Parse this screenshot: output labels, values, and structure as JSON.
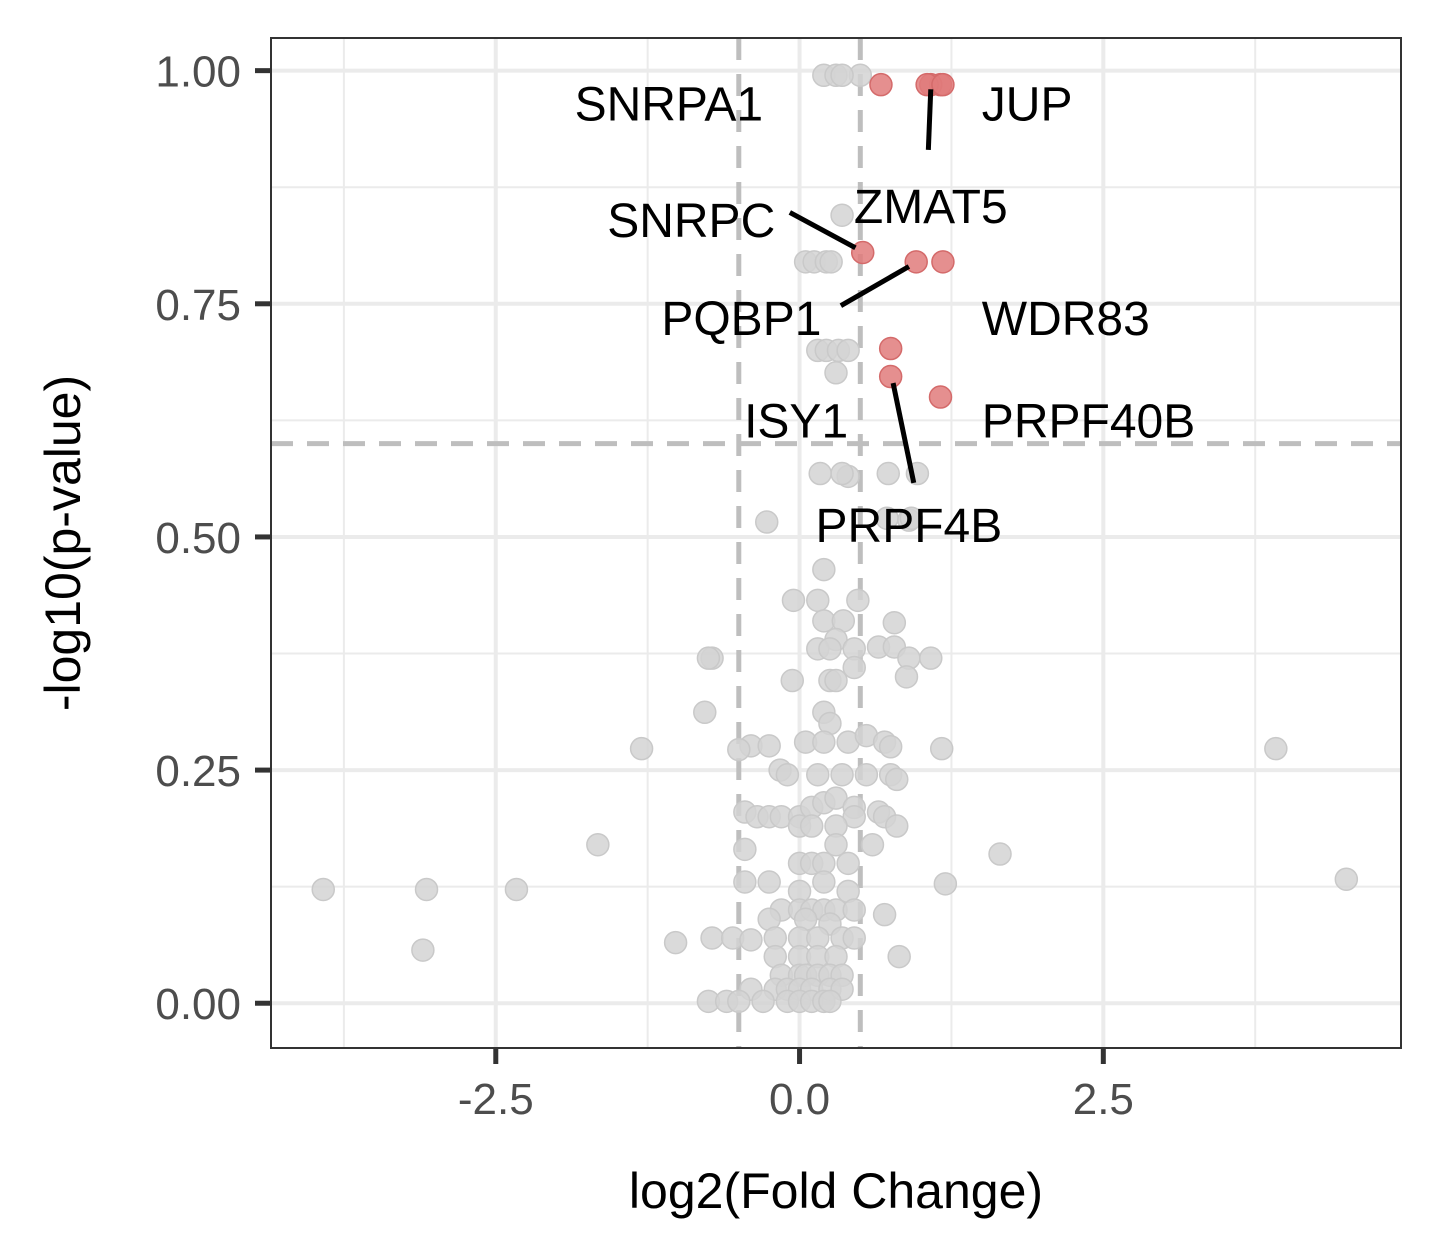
{
  "chart_data": {
    "type": "scatter",
    "xlabel": "log2(Fold Change)",
    "ylabel": "-log10(p-value)",
    "xlim": [
      -4.35,
      4.95
    ],
    "ylim": [
      -0.048,
      1.035
    ],
    "x_ticks": [
      -2.5,
      0.0,
      2.5
    ],
    "x_tick_labels": [
      "-2.5",
      "0.0",
      "2.5"
    ],
    "y_ticks": [
      0.0,
      0.25,
      0.5,
      0.75,
      1.0
    ],
    "y_tick_labels": [
      "0.00",
      "0.25",
      "0.50",
      "0.75",
      "1.00"
    ],
    "grid": true,
    "thresholds": {
      "fold_change_x": [
        -0.5,
        0.5
      ],
      "pvalue_y": 0.6
    },
    "colors": {
      "significant": "#e07b7b",
      "nonsignificant": "#d3d3d3",
      "threshold_line": "#bebebe",
      "grid": "#ebebeb"
    },
    "significant_points": [
      {
        "gene": "SNRPA1",
        "x": 0.67,
        "y": 0.985,
        "label_x": -0.3,
        "label_y": 0.965,
        "anchor": "end"
      },
      {
        "gene": "JUP",
        "x": 1.16,
        "y": 0.985,
        "label_x": 1.5,
        "label_y": 0.965,
        "anchor": "start"
      },
      {
        "gene": "ZMAT5",
        "x": 1.08,
        "y": 0.985,
        "label_x": 1.08,
        "label_y": 0.855,
        "anchor": "middle",
        "leader": [
          1.08,
          0.98,
          1.06,
          0.915
        ]
      },
      {
        "gene": "SNRPC",
        "x": 0.52,
        "y": 0.805,
        "label_x": -0.2,
        "label_y": 0.84,
        "anchor": "end",
        "leader": [
          -0.08,
          0.848,
          0.46,
          0.81
        ]
      },
      {
        "gene": "PQBP1",
        "x": 0.96,
        "y": 0.795,
        "label_x": 0.18,
        "label_y": 0.735,
        "anchor": "end",
        "leader": [
          0.34,
          0.748,
          0.9,
          0.79
        ]
      },
      {
        "gene": "WDR83",
        "x": 1.18,
        "y": 0.795,
        "label_x": 1.5,
        "label_y": 0.735,
        "anchor": "start"
      },
      {
        "gene": "ISY1",
        "x": 0.75,
        "y": 0.672,
        "label_x": 0.4,
        "label_y": 0.625,
        "anchor": "end"
      },
      {
        "gene": "PRPF4B",
        "x": 0.75,
        "y": 0.702,
        "label_x": 0.9,
        "label_y": 0.513,
        "anchor": "middle",
        "leader": [
          0.77,
          0.665,
          0.94,
          0.558
        ]
      },
      {
        "gene": "PRPF40B",
        "x": 1.16,
        "y": 0.65,
        "label_x": 1.5,
        "label_y": 0.625,
        "anchor": "start"
      },
      {
        "gene": "",
        "x": 1.05,
        "y": 0.985
      },
      {
        "gene": "",
        "x": 1.18,
        "y": 0.985
      }
    ],
    "nonsignificant_points": [
      [
        0.2,
        0.995
      ],
      [
        0.3,
        0.995
      ],
      [
        0.5,
        0.995
      ],
      [
        0.35,
        0.995
      ],
      [
        0.35,
        0.845
      ],
      [
        0.05,
        0.795
      ],
      [
        0.12,
        0.795
      ],
      [
        0.22,
        0.795
      ],
      [
        0.26,
        0.795
      ],
      [
        0.15,
        0.7
      ],
      [
        0.22,
        0.7
      ],
      [
        0.32,
        0.7
      ],
      [
        0.4,
        0.7
      ],
      [
        0.3,
        0.676
      ],
      [
        0.17,
        0.568
      ],
      [
        0.4,
        0.565
      ],
      [
        0.35,
        0.568
      ],
      [
        0.73,
        0.568
      ],
      [
        0.97,
        0.568
      ],
      [
        -0.27,
        0.516
      ],
      [
        0.72,
        0.52
      ],
      [
        0.9,
        0.518
      ],
      [
        0.92,
        0.52
      ],
      [
        0.2,
        0.465
      ],
      [
        -0.05,
        0.432
      ],
      [
        0.15,
        0.432
      ],
      [
        0.48,
        0.432
      ],
      [
        0.2,
        0.41
      ],
      [
        0.36,
        0.41
      ],
      [
        0.3,
        0.39
      ],
      [
        0.78,
        0.408
      ],
      [
        -0.72,
        0.37
      ],
      [
        -0.75,
        0.37
      ],
      [
        0.15,
        0.38
      ],
      [
        0.25,
        0.38
      ],
      [
        0.45,
        0.38
      ],
      [
        0.65,
        0.382
      ],
      [
        0.78,
        0.382
      ],
      [
        0.9,
        0.37
      ],
      [
        1.08,
        0.37
      ],
      [
        0.88,
        0.35
      ],
      [
        -0.06,
        0.346
      ],
      [
        0.25,
        0.346
      ],
      [
        0.3,
        0.346
      ],
      [
        0.45,
        0.36
      ],
      [
        -0.78,
        0.312
      ],
      [
        0.2,
        0.312
      ],
      [
        0.25,
        0.3
      ],
      [
        -1.3,
        0.273
      ],
      [
        -0.4,
        0.276
      ],
      [
        -0.25,
        0.276
      ],
      [
        -0.5,
        0.272
      ],
      [
        0.05,
        0.28
      ],
      [
        0.2,
        0.28
      ],
      [
        0.4,
        0.28
      ],
      [
        0.55,
        0.287
      ],
      [
        0.7,
        0.28
      ],
      [
        0.75,
        0.275
      ],
      [
        1.17,
        0.273
      ],
      [
        3.92,
        0.273
      ],
      [
        -0.16,
        0.25
      ],
      [
        -0.1,
        0.245
      ],
      [
        0.15,
        0.245
      ],
      [
        0.35,
        0.245
      ],
      [
        0.55,
        0.245
      ],
      [
        0.75,
        0.245
      ],
      [
        0.8,
        0.24
      ],
      [
        -0.45,
        0.205
      ],
      [
        -0.35,
        0.2
      ],
      [
        -0.25,
        0.2
      ],
      [
        -0.15,
        0.2
      ],
      [
        0.0,
        0.2
      ],
      [
        0.1,
        0.21
      ],
      [
        0.2,
        0.215
      ],
      [
        0.3,
        0.22
      ],
      [
        0.45,
        0.21
      ],
      [
        0.65,
        0.205
      ],
      [
        0.7,
        0.2
      ],
      [
        0.45,
        0.2
      ],
      [
        0.0,
        0.19
      ],
      [
        0.1,
        0.19
      ],
      [
        0.3,
        0.19
      ],
      [
        0.8,
        0.19
      ],
      [
        -1.66,
        0.17
      ],
      [
        -0.45,
        0.165
      ],
      [
        0.3,
        0.17
      ],
      [
        0.6,
        0.17
      ],
      [
        1.65,
        0.16
      ],
      [
        0.0,
        0.15
      ],
      [
        0.1,
        0.15
      ],
      [
        0.2,
        0.15
      ],
      [
        0.4,
        0.15
      ],
      [
        -3.92,
        0.122
      ],
      [
        -3.07,
        0.122
      ],
      [
        -2.33,
        0.122
      ],
      [
        -0.45,
        0.13
      ],
      [
        -0.25,
        0.13
      ],
      [
        0.0,
        0.12
      ],
      [
        0.2,
        0.13
      ],
      [
        0.4,
        0.12
      ],
      [
        1.2,
        0.128
      ],
      [
        4.5,
        0.133
      ],
      [
        -0.15,
        0.1
      ],
      [
        0.0,
        0.1
      ],
      [
        0.1,
        0.1
      ],
      [
        0.2,
        0.1
      ],
      [
        0.3,
        0.1
      ],
      [
        0.45,
        0.1
      ],
      [
        -0.25,
        0.09
      ],
      [
        0.05,
        0.09
      ],
      [
        0.25,
        0.085
      ],
      [
        0.7,
        0.095
      ],
      [
        -3.1,
        0.057
      ],
      [
        -1.02,
        0.065
      ],
      [
        -0.72,
        0.07
      ],
      [
        -0.55,
        0.07
      ],
      [
        -0.4,
        0.068
      ],
      [
        -0.2,
        0.07
      ],
      [
        0.0,
        0.07
      ],
      [
        0.15,
        0.07
      ],
      [
        0.35,
        0.07
      ],
      [
        0.45,
        0.07
      ],
      [
        -0.2,
        0.05
      ],
      [
        0.0,
        0.05
      ],
      [
        0.15,
        0.05
      ],
      [
        0.3,
        0.05
      ],
      [
        0.82,
        0.05
      ],
      [
        -0.15,
        0.03
      ],
      [
        0.0,
        0.03
      ],
      [
        0.05,
        0.03
      ],
      [
        0.15,
        0.03
      ],
      [
        0.25,
        0.03
      ],
      [
        0.35,
        0.03
      ],
      [
        -0.4,
        0.015
      ],
      [
        -0.2,
        0.015
      ],
      [
        -0.1,
        0.015
      ],
      [
        0.0,
        0.015
      ],
      [
        0.1,
        0.015
      ],
      [
        0.25,
        0.015
      ],
      [
        0.35,
        0.015
      ],
      [
        -0.75,
        0.002
      ],
      [
        -0.6,
        0.002
      ],
      [
        -0.5,
        0.002
      ],
      [
        -0.3,
        0.002
      ],
      [
        -0.1,
        0.002
      ],
      [
        0.0,
        0.002
      ],
      [
        0.1,
        0.002
      ],
      [
        0.2,
        0.002
      ],
      [
        0.25,
        0.002
      ]
    ]
  }
}
